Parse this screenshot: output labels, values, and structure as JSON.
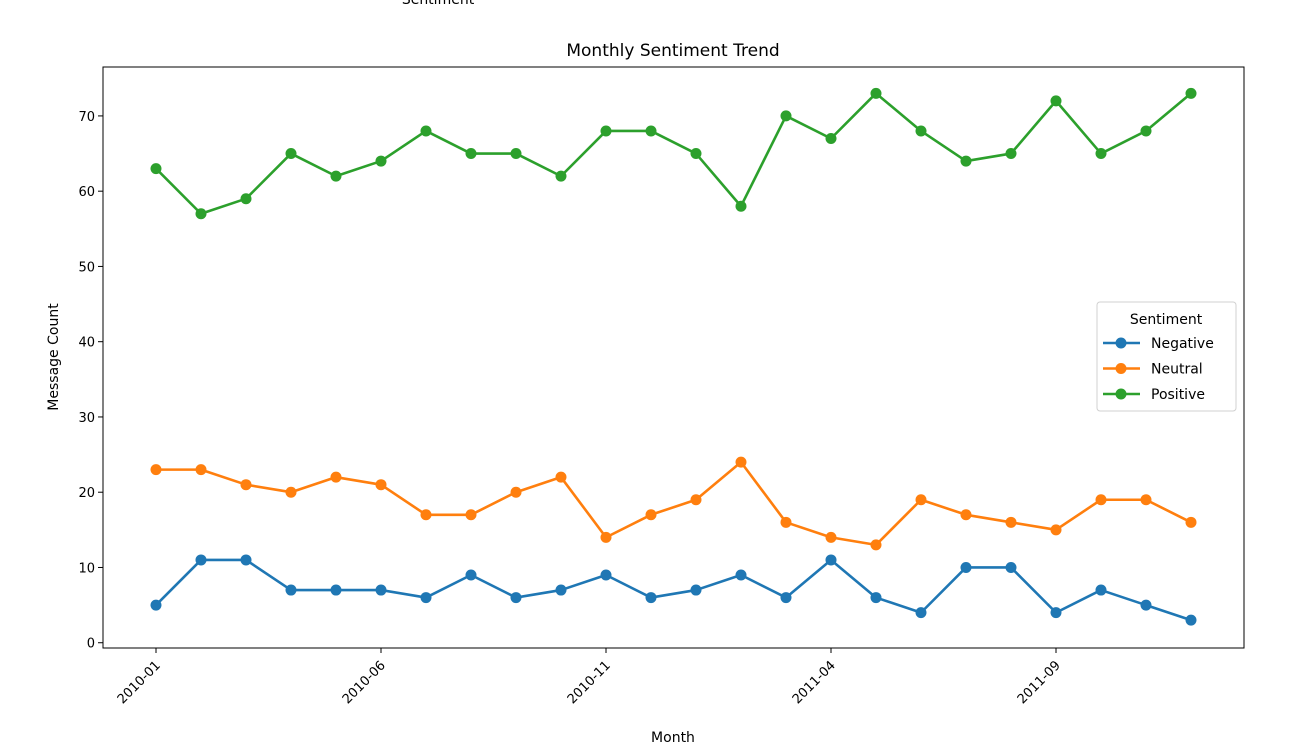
{
  "top_label": "Sentiment",
  "chart_data": {
    "type": "line",
    "title": "Monthly Sentiment Trend",
    "xlabel": "Month",
    "ylabel": "Message Count",
    "x": [
      "2010-01",
      "2010-02",
      "2010-03",
      "2010-04",
      "2010-05",
      "2010-06",
      "2010-07",
      "2010-08",
      "2010-09",
      "2010-10",
      "2010-11",
      "2010-12",
      "2011-01",
      "2011-02",
      "2011-03",
      "2011-04",
      "2011-05",
      "2011-06",
      "2011-07",
      "2011-08",
      "2011-09",
      "2011-10",
      "2011-11",
      "2011-12"
    ],
    "xticks": [
      "2010-01",
      "2010-06",
      "2010-11",
      "2011-04",
      "2011-09"
    ],
    "yticks": [
      0,
      10,
      20,
      30,
      40,
      50,
      60,
      70
    ],
    "ylim": [
      -0.7,
      76.5
    ],
    "legend_title": "Sentiment",
    "legend_position": "center-right",
    "grid": false,
    "series": [
      {
        "name": "Negative",
        "color": "#1f77b4",
        "values": [
          5,
          11,
          11,
          7,
          7,
          7,
          6,
          9,
          6,
          7,
          9,
          6,
          7,
          9,
          6,
          11,
          6,
          4,
          10,
          10,
          4,
          7,
          5,
          3
        ]
      },
      {
        "name": "Neutral",
        "color": "#ff7f0e",
        "values": [
          23,
          23,
          21,
          20,
          22,
          21,
          17,
          17,
          20,
          22,
          14,
          17,
          19,
          24,
          16,
          14,
          13,
          19,
          17,
          16,
          15,
          19,
          19,
          16
        ]
      },
      {
        "name": "Positive",
        "color": "#2ca02c",
        "values": [
          63,
          57,
          59,
          65,
          62,
          64,
          68,
          65,
          65,
          62,
          68,
          68,
          65,
          58,
          70,
          67,
          73,
          68,
          64,
          65,
          72,
          65,
          68,
          73
        ]
      }
    ]
  }
}
